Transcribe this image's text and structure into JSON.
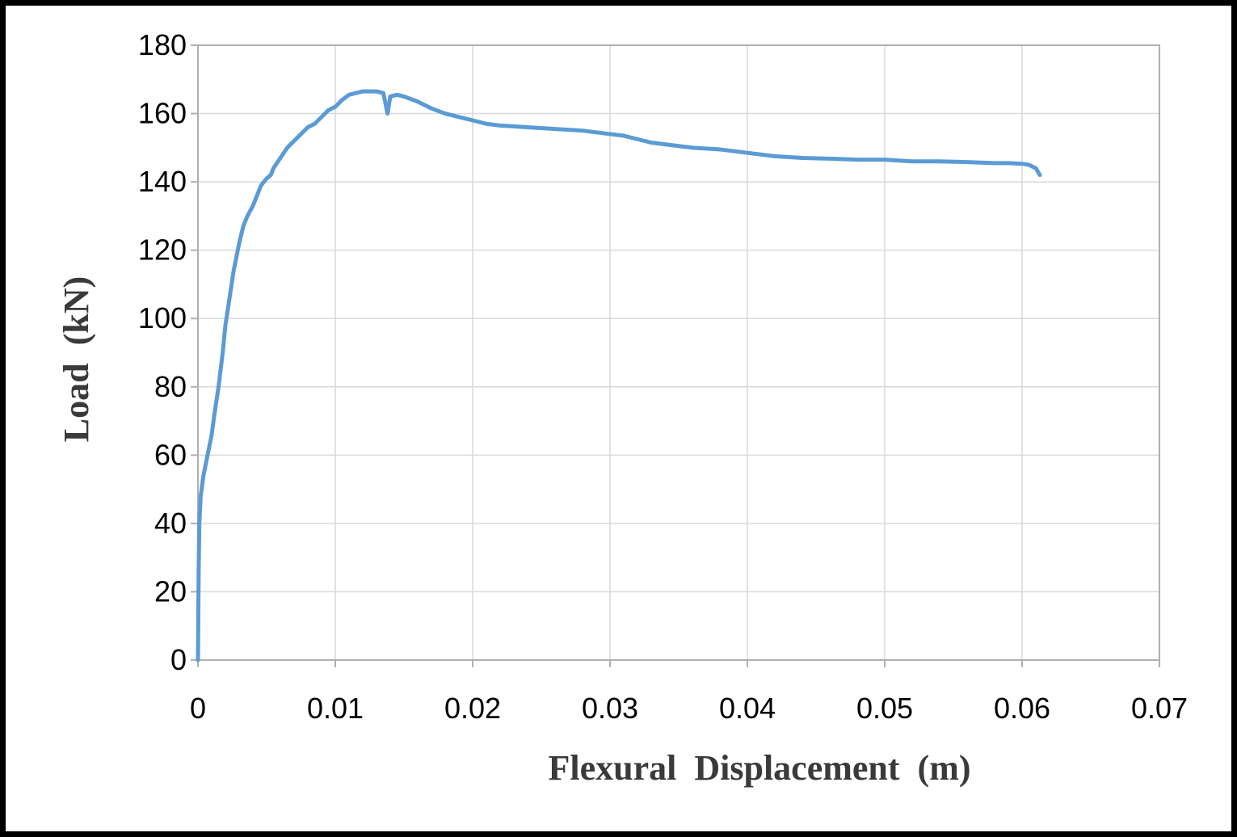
{
  "chart_data": {
    "type": "line",
    "title": "",
    "xlabel": "Flexural  Displacement  (m)",
    "ylabel": "Load  (kN)",
    "xlim": [
      0,
      0.07
    ],
    "ylim": [
      0,
      180
    ],
    "x_ticks": [
      "0",
      "0.01",
      "0.02",
      "0.03",
      "0.04",
      "0.05",
      "0.06",
      "0.07"
    ],
    "y_ticks": [
      "0",
      "20",
      "40",
      "60",
      "80",
      "100",
      "120",
      "140",
      "160",
      "180"
    ],
    "grid": true,
    "legend": "none",
    "line_color": "#5b9bd5",
    "series": [
      {
        "x": [
          0,
          5e-05,
          0.0001,
          0.0002,
          0.0004,
          0.0006,
          0.0008,
          0.001,
          0.0012,
          0.0015,
          0.0018,
          0.002,
          0.0023,
          0.0026,
          0.003,
          0.0033,
          0.0036,
          0.004,
          0.0043,
          0.0046,
          0.005,
          0.0053,
          0.0055,
          0.006,
          0.0065,
          0.007,
          0.0075,
          0.008,
          0.0085,
          0.009,
          0.0095,
          0.01,
          0.0105,
          0.011,
          0.0115,
          0.012,
          0.0125,
          0.013,
          0.0135,
          0.0138,
          0.014,
          0.0145,
          0.015,
          0.016,
          0.017,
          0.018,
          0.019,
          0.02,
          0.021,
          0.022,
          0.024,
          0.026,
          0.028,
          0.03,
          0.031,
          0.032,
          0.033,
          0.034,
          0.035,
          0.036,
          0.038,
          0.04,
          0.042,
          0.044,
          0.046,
          0.048,
          0.05,
          0.052,
          0.054,
          0.056,
          0.058,
          0.059,
          0.06,
          0.0605,
          0.061,
          0.0613
        ],
        "y": [
          0,
          25,
          40,
          48,
          54,
          58,
          62,
          66,
          72,
          80,
          90,
          98,
          106,
          114,
          122,
          127,
          130,
          133,
          136,
          139,
          141,
          142,
          144,
          147,
          150,
          152,
          154,
          156,
          157,
          159,
          161,
          162,
          164,
          165.5,
          166,
          166.5,
          166.5,
          166.5,
          166,
          160,
          165,
          165.5,
          165,
          163.5,
          161.5,
          160,
          159,
          158,
          157,
          156.5,
          156,
          155.5,
          155,
          154,
          153.5,
          152.5,
          151.5,
          151,
          150.5,
          150,
          149.5,
          148.5,
          147.5,
          147,
          146.8,
          146.5,
          146.5,
          146,
          146,
          145.8,
          145.5,
          145.5,
          145.3,
          145,
          144,
          142
        ]
      }
    ]
  }
}
